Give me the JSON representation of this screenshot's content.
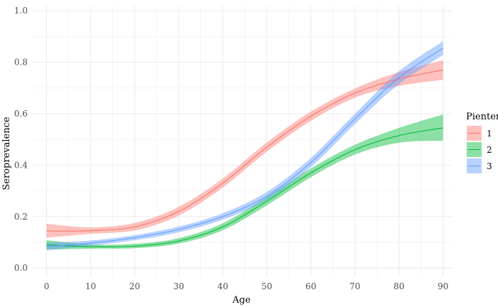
{
  "chart_data": {
    "type": "line",
    "xlabel": "Age",
    "ylabel": "Seroprevalence",
    "xlim": [
      -3,
      92
    ],
    "ylim": [
      -0.03,
      1.02
    ],
    "xticks": [
      0,
      10,
      20,
      30,
      40,
      50,
      60,
      70,
      80,
      90
    ],
    "yticks": [
      0.0,
      0.2,
      0.4,
      0.6,
      0.8,
      1.0
    ],
    "ytick_labels": [
      "0.0",
      "0.2",
      "0.4",
      "0.6",
      "0.8",
      "1.0"
    ],
    "grid": true,
    "legend": {
      "title": "Pienter",
      "position": "right"
    },
    "x": [
      0,
      10,
      20,
      30,
      40,
      50,
      60,
      70,
      80,
      90
    ],
    "series": [
      {
        "name": "1",
        "color": "#F8766D",
        "values": [
          0.144,
          0.145,
          0.16,
          0.22,
          0.33,
          0.47,
          0.59,
          0.68,
          0.735,
          0.77
        ],
        "lower": [
          0.118,
          0.133,
          0.146,
          0.204,
          0.313,
          0.452,
          0.572,
          0.662,
          0.708,
          0.732
        ],
        "upper": [
          0.172,
          0.158,
          0.175,
          0.238,
          0.348,
          0.488,
          0.608,
          0.698,
          0.762,
          0.808
        ]
      },
      {
        "name": "2",
        "color": "#00BA38",
        "values": [
          0.09,
          0.083,
          0.085,
          0.105,
          0.16,
          0.26,
          0.37,
          0.46,
          0.515,
          0.545
        ],
        "lower": [
          0.072,
          0.075,
          0.077,
          0.095,
          0.147,
          0.244,
          0.353,
          0.441,
          0.487,
          0.495
        ],
        "upper": [
          0.108,
          0.092,
          0.094,
          0.116,
          0.174,
          0.277,
          0.387,
          0.479,
          0.545,
          0.597
        ]
      },
      {
        "name": "3",
        "color": "#619CFF",
        "values": [
          0.083,
          0.097,
          0.118,
          0.15,
          0.2,
          0.28,
          0.41,
          0.58,
          0.74,
          0.855
        ],
        "lower": [
          0.068,
          0.087,
          0.108,
          0.139,
          0.188,
          0.265,
          0.392,
          0.56,
          0.715,
          0.828
        ],
        "upper": [
          0.098,
          0.107,
          0.128,
          0.161,
          0.213,
          0.296,
          0.428,
          0.6,
          0.765,
          0.882
        ]
      }
    ]
  }
}
